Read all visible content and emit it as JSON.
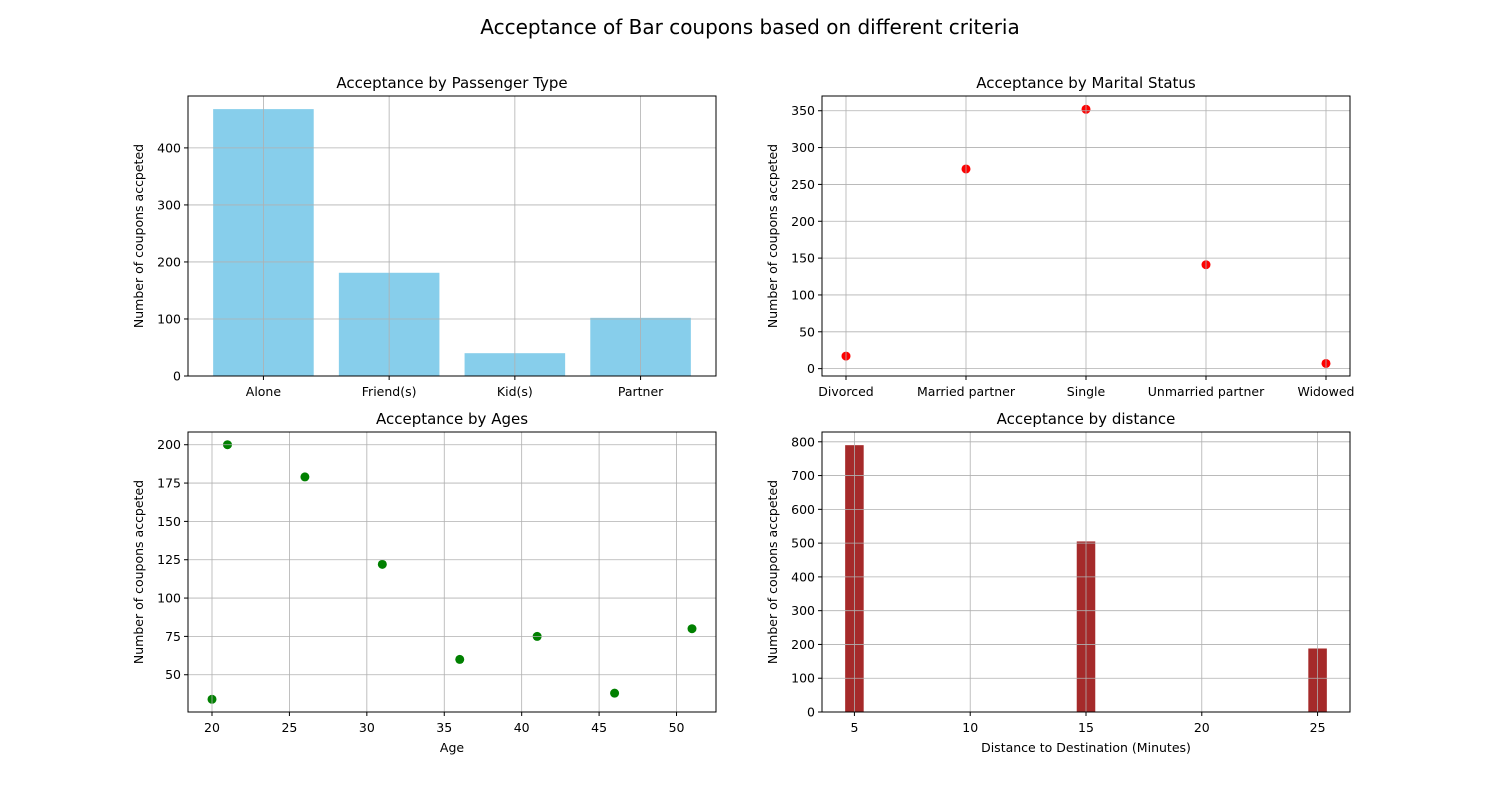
{
  "figure": {
    "suptitle": "Acceptance of Bar coupons based on different criteria"
  },
  "chart_data": [
    {
      "type": "bar",
      "title": "Acceptance by Passenger Type",
      "xlabel": "",
      "ylabel": "Number of coupons accpeted",
      "categories": [
        "Alone",
        "Friend(s)",
        "Kid(s)",
        "Partner"
      ],
      "values": [
        468,
        181,
        40,
        102
      ],
      "ylim": [
        0,
        491
      ],
      "yticks": [
        0,
        100,
        200,
        300,
        400
      ],
      "color": "#87ceeb",
      "grid": true
    },
    {
      "type": "scatter",
      "title": "Acceptance by Marital Status",
      "xlabel": "",
      "ylabel": "Number of coupons accpeted",
      "categories": [
        "Divorced",
        "Married partner",
        "Single",
        "Unmarried partner",
        "Widowed"
      ],
      "values": [
        17,
        271,
        352,
        141,
        7
      ],
      "ylim": [
        -10,
        370
      ],
      "yticks": [
        0,
        50,
        100,
        150,
        200,
        250,
        300,
        350
      ],
      "color": "#ff0000",
      "grid": true
    },
    {
      "type": "scatter",
      "title": "Acceptance by Ages",
      "xlabel": "Age",
      "ylabel": "Number of coupons accpeted",
      "x": [
        20,
        21,
        26,
        31,
        36,
        41,
        46,
        51
      ],
      "y": [
        34,
        200,
        179,
        122,
        60,
        75,
        38,
        80
      ],
      "xlim": [
        18.45,
        52.55
      ],
      "ylim": [
        25.7,
        208.3
      ],
      "xticks": [
        20,
        25,
        30,
        35,
        40,
        45,
        50
      ],
      "yticks": [
        50,
        75,
        100,
        125,
        150,
        175,
        200
      ],
      "color": "#008000",
      "grid": true
    },
    {
      "type": "bar",
      "title": "Acceptance by distance",
      "xlabel": "Distance to Destination (Minutes)",
      "ylabel": "Number of coupons accpeted",
      "x": [
        5,
        15,
        25
      ],
      "values": [
        790,
        505,
        188
      ],
      "bar_width": 0.8,
      "xlim": [
        3.6,
        26.4
      ],
      "ylim": [
        0,
        829
      ],
      "xticks": [
        5,
        10,
        15,
        20,
        25
      ],
      "yticks": [
        0,
        100,
        200,
        300,
        400,
        500,
        600,
        700,
        800
      ],
      "color": "#a52a2a",
      "grid": true
    }
  ]
}
